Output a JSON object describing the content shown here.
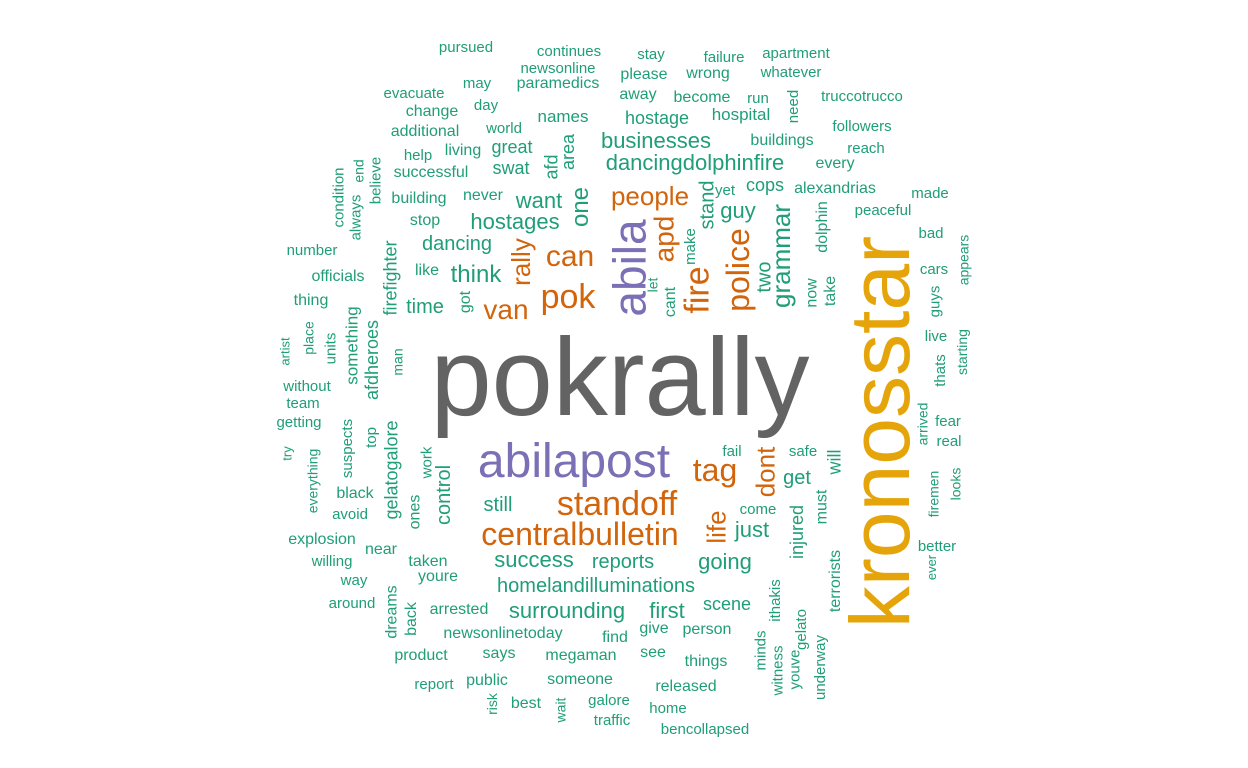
{
  "colors": {
    "big": "#636363",
    "gold": "#E5A50A",
    "purple": "#7B6FB5",
    "orange": "#D2640C",
    "teal": "#1F9E77"
  },
  "words": [
    {
      "t": "pokrally",
      "c": "big"
    },
    {
      "t": "kronosstar",
      "c": "gold"
    },
    {
      "t": "abilapost",
      "c": "purple"
    },
    {
      "t": "abila",
      "c": "purple"
    },
    {
      "t": "standoff",
      "c": "orange"
    },
    {
      "t": "centralbulletin",
      "c": "orange"
    },
    {
      "t": "pok",
      "c": "orange"
    },
    {
      "t": "fire",
      "c": "orange"
    },
    {
      "t": "police",
      "c": "orange"
    },
    {
      "t": "tag",
      "c": "orange"
    },
    {
      "t": "people",
      "c": "orange"
    },
    {
      "t": "can",
      "c": "orange"
    },
    {
      "t": "van",
      "c": "orange"
    },
    {
      "t": "rally",
      "c": "orange"
    },
    {
      "t": "apd",
      "c": "orange"
    },
    {
      "t": "life",
      "c": "orange"
    },
    {
      "t": "dont",
      "c": "orange"
    },
    {
      "t": "one",
      "c": "teal"
    },
    {
      "t": "grammar",
      "c": "teal"
    },
    {
      "t": "businesses",
      "c": "teal"
    },
    {
      "t": "dancingdolphinfire",
      "c": "teal"
    },
    {
      "t": "think",
      "c": "teal"
    },
    {
      "t": "want",
      "c": "teal"
    },
    {
      "t": "hostages",
      "c": "teal"
    },
    {
      "t": "dancing",
      "c": "teal"
    },
    {
      "t": "stand",
      "c": "teal"
    },
    {
      "t": "guy",
      "c": "teal"
    },
    {
      "t": "two",
      "c": "teal"
    },
    {
      "t": "cops",
      "c": "teal"
    },
    {
      "t": "homelandilluminations",
      "c": "teal"
    },
    {
      "t": "surrounding",
      "c": "teal"
    },
    {
      "t": "success",
      "c": "teal"
    },
    {
      "t": "reports",
      "c": "teal"
    },
    {
      "t": "going",
      "c": "teal"
    },
    {
      "t": "still",
      "c": "teal"
    },
    {
      "t": "control",
      "c": "teal"
    },
    {
      "t": "just",
      "c": "teal"
    },
    {
      "t": "get",
      "c": "teal"
    },
    {
      "t": "will",
      "c": "teal"
    },
    {
      "t": "first",
      "c": "teal"
    },
    {
      "t": "scene",
      "c": "teal"
    },
    {
      "t": "injured",
      "c": "teal"
    },
    {
      "t": "time",
      "c": "teal"
    },
    {
      "t": "afdheroes",
      "c": "teal"
    },
    {
      "t": "firefighter",
      "c": "teal"
    },
    {
      "t": "something",
      "c": "teal"
    },
    {
      "t": "gelatogalore",
      "c": "teal"
    },
    {
      "t": "hostage",
      "c": "teal"
    },
    {
      "t": "swat",
      "c": "teal"
    },
    {
      "t": "great",
      "c": "teal"
    },
    {
      "t": "area",
      "c": "teal"
    },
    {
      "t": "afd",
      "c": "teal"
    },
    {
      "t": "names",
      "c": "teal"
    },
    {
      "t": "hospital",
      "c": "teal"
    },
    {
      "t": "buildings",
      "c": "teal"
    },
    {
      "t": "alexandrias",
      "c": "teal"
    },
    {
      "t": "every",
      "c": "teal"
    },
    {
      "t": "dolphin",
      "c": "teal"
    },
    {
      "t": "take",
      "c": "teal"
    },
    {
      "t": "now",
      "c": "teal"
    },
    {
      "t": "make",
      "c": "teal"
    },
    {
      "t": "cant",
      "c": "teal"
    },
    {
      "t": "let",
      "c": "teal"
    },
    {
      "t": "yet",
      "c": "teal"
    },
    {
      "t": "got",
      "c": "teal"
    },
    {
      "t": "like",
      "c": "teal"
    },
    {
      "t": "stop",
      "c": "teal"
    },
    {
      "t": "never",
      "c": "teal"
    },
    {
      "t": "successful",
      "c": "teal"
    },
    {
      "t": "building",
      "c": "teal"
    },
    {
      "t": "living",
      "c": "teal"
    },
    {
      "t": "help",
      "c": "teal"
    },
    {
      "t": "world",
      "c": "teal"
    },
    {
      "t": "additional",
      "c": "teal"
    },
    {
      "t": "change",
      "c": "teal"
    },
    {
      "t": "day",
      "c": "teal"
    },
    {
      "t": "evacuate",
      "c": "teal"
    },
    {
      "t": "may",
      "c": "teal"
    },
    {
      "t": "paramedics",
      "c": "teal"
    },
    {
      "t": "newsonline",
      "c": "teal"
    },
    {
      "t": "continues",
      "c": "teal"
    },
    {
      "t": "pursued",
      "c": "teal"
    },
    {
      "t": "stay",
      "c": "teal"
    },
    {
      "t": "please",
      "c": "teal"
    },
    {
      "t": "wrong",
      "c": "teal"
    },
    {
      "t": "failure",
      "c": "teal"
    },
    {
      "t": "apartment",
      "c": "teal"
    },
    {
      "t": "whatever",
      "c": "teal"
    },
    {
      "t": "away",
      "c": "teal"
    },
    {
      "t": "become",
      "c": "teal"
    },
    {
      "t": "run",
      "c": "teal"
    },
    {
      "t": "need",
      "c": "teal"
    },
    {
      "t": "truccotrucco",
      "c": "teal"
    },
    {
      "t": "followers",
      "c": "teal"
    },
    {
      "t": "reach",
      "c": "teal"
    },
    {
      "t": "made",
      "c": "teal"
    },
    {
      "t": "peaceful",
      "c": "teal"
    },
    {
      "t": "bad",
      "c": "teal"
    },
    {
      "t": "appears",
      "c": "teal"
    },
    {
      "t": "cars",
      "c": "teal"
    },
    {
      "t": "guys",
      "c": "teal"
    },
    {
      "t": "live",
      "c": "teal"
    },
    {
      "t": "thats",
      "c": "teal"
    },
    {
      "t": "starting",
      "c": "teal"
    },
    {
      "t": "arrived",
      "c": "teal"
    },
    {
      "t": "fear",
      "c": "teal"
    },
    {
      "t": "real",
      "c": "teal"
    },
    {
      "t": "firemen",
      "c": "teal"
    },
    {
      "t": "looks",
      "c": "teal"
    },
    {
      "t": "ever",
      "c": "teal"
    },
    {
      "t": "better",
      "c": "teal"
    },
    {
      "t": "terrorists",
      "c": "teal"
    },
    {
      "t": "underway",
      "c": "teal"
    },
    {
      "t": "gelato",
      "c": "teal"
    },
    {
      "t": "youve",
      "c": "teal"
    },
    {
      "t": "ithakis",
      "c": "teal"
    },
    {
      "t": "witness",
      "c": "teal"
    },
    {
      "t": "minds",
      "c": "teal"
    },
    {
      "t": "must",
      "c": "teal"
    },
    {
      "t": "safe",
      "c": "teal"
    },
    {
      "t": "fail",
      "c": "teal"
    },
    {
      "t": "come",
      "c": "teal"
    },
    {
      "t": "person",
      "c": "teal"
    },
    {
      "t": "give",
      "c": "teal"
    },
    {
      "t": "find",
      "c": "teal"
    },
    {
      "t": "see",
      "c": "teal"
    },
    {
      "t": "things",
      "c": "teal"
    },
    {
      "t": "released",
      "c": "teal"
    },
    {
      "t": "home",
      "c": "teal"
    },
    {
      "t": "bencollapsed",
      "c": "teal"
    },
    {
      "t": "megaman",
      "c": "teal"
    },
    {
      "t": "someone",
      "c": "teal"
    },
    {
      "t": "galore",
      "c": "teal"
    },
    {
      "t": "traffic",
      "c": "teal"
    },
    {
      "t": "wait",
      "c": "teal"
    },
    {
      "t": "best",
      "c": "teal"
    },
    {
      "t": "risk",
      "c": "teal"
    },
    {
      "t": "says",
      "c": "teal"
    },
    {
      "t": "public",
      "c": "teal"
    },
    {
      "t": "report",
      "c": "teal"
    },
    {
      "t": "product",
      "c": "teal"
    },
    {
      "t": "dreams",
      "c": "teal"
    },
    {
      "t": "back",
      "c": "teal"
    },
    {
      "t": "newsonlinetoday",
      "c": "teal"
    },
    {
      "t": "arrested",
      "c": "teal"
    },
    {
      "t": "youre",
      "c": "teal"
    },
    {
      "t": "taken",
      "c": "teal"
    },
    {
      "t": "near",
      "c": "teal"
    },
    {
      "t": "ones",
      "c": "teal"
    },
    {
      "t": "work",
      "c": "teal"
    },
    {
      "t": "black",
      "c": "teal"
    },
    {
      "t": "avoid",
      "c": "teal"
    },
    {
      "t": "explosion",
      "c": "teal"
    },
    {
      "t": "willing",
      "c": "teal"
    },
    {
      "t": "way",
      "c": "teal"
    },
    {
      "t": "around",
      "c": "teal"
    },
    {
      "t": "suspects",
      "c": "teal"
    },
    {
      "t": "top",
      "c": "teal"
    },
    {
      "t": "everything",
      "c": "teal"
    },
    {
      "t": "try",
      "c": "teal"
    },
    {
      "t": "getting",
      "c": "teal"
    },
    {
      "t": "team",
      "c": "teal"
    },
    {
      "t": "without",
      "c": "teal"
    },
    {
      "t": "artist",
      "c": "teal"
    },
    {
      "t": "place",
      "c": "teal"
    },
    {
      "t": "units",
      "c": "teal"
    },
    {
      "t": "man",
      "c": "teal"
    },
    {
      "t": "thing",
      "c": "teal"
    },
    {
      "t": "officials",
      "c": "teal"
    },
    {
      "t": "number",
      "c": "teal"
    },
    {
      "t": "always",
      "c": "teal"
    },
    {
      "t": "end",
      "c": "teal"
    },
    {
      "t": "condition",
      "c": "teal"
    },
    {
      "t": "believe",
      "c": "teal"
    }
  ]
}
